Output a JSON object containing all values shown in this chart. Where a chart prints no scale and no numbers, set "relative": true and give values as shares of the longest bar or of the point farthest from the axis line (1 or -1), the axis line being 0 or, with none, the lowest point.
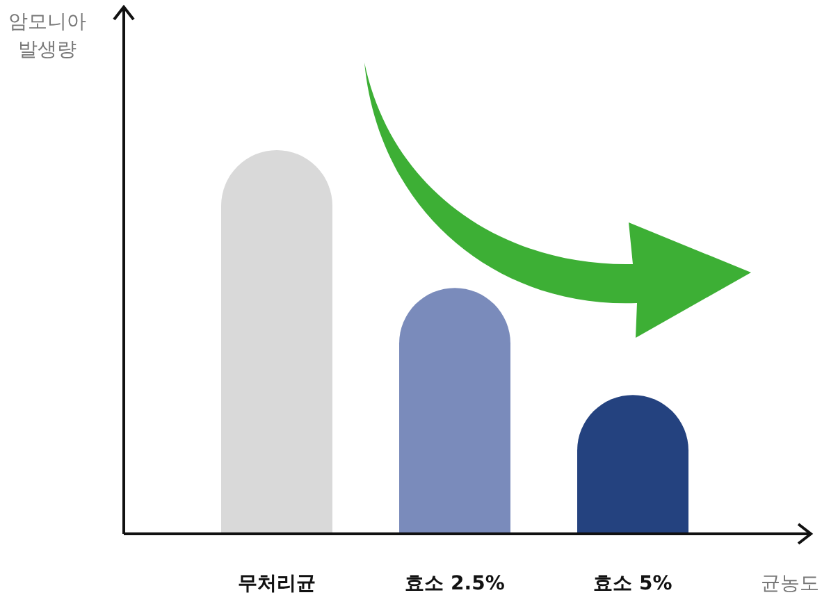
{
  "chart_data": {
    "type": "bar",
    "relative": true,
    "categories": [
      "무처리균",
      "효소 2.5%",
      "효소 5%"
    ],
    "values": [
      1,
      0.641,
      0.362
    ],
    "colors": [
      "#d9d9d9",
      "#7a8bbb",
      "#24427f"
    ],
    "ylabel": "암모니아\n발생량",
    "xlabel": "균농도"
  }
}
